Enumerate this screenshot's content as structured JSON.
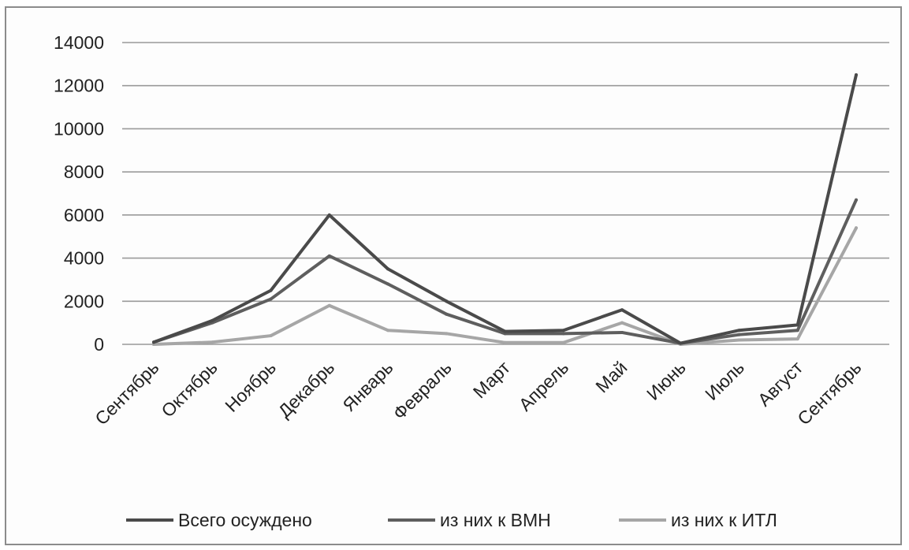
{
  "chart_data": {
    "type": "line",
    "title": "",
    "xlabel": "",
    "ylabel": "",
    "categories": [
      "Сентябрь",
      "Октябрь",
      "Ноябрь",
      "Декабрь",
      "Январь",
      "Февраль",
      "Март",
      "Апрель",
      "Май",
      "Июнь",
      "Июль",
      "Август",
      "Сентябрь"
    ],
    "ylim": [
      0,
      14000
    ],
    "yticks": [
      0,
      2000,
      4000,
      6000,
      8000,
      10000,
      12000,
      14000
    ],
    "grid": true,
    "legend_position": "bottom",
    "series": [
      {
        "name": "Всего осуждено",
        "color": "#4a4a4a",
        "values": [
          100,
          1100,
          2500,
          6000,
          3500,
          2000,
          600,
          650,
          1600,
          50,
          650,
          900,
          12500
        ]
      },
      {
        "name": "из них к ВМН",
        "color": "#5e5e5e",
        "values": [
          100,
          1000,
          2100,
          4100,
          2800,
          1400,
          500,
          500,
          550,
          50,
          450,
          650,
          6700
        ]
      },
      {
        "name": "из них к ИТЛ",
        "color": "#a6a6a6",
        "values": [
          0,
          100,
          400,
          1800,
          650,
          500,
          80,
          80,
          1000,
          0,
          200,
          250,
          5400
        ]
      }
    ]
  }
}
